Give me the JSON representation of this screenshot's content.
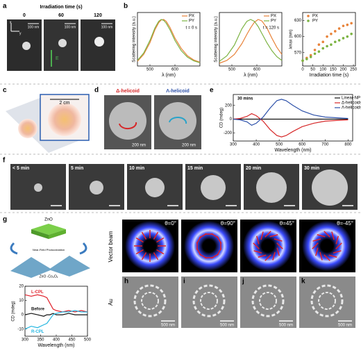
{
  "panels": {
    "a": {
      "label": "a",
      "title": "Irradiation time (s)",
      "times": [
        "0",
        "60",
        "120"
      ],
      "scale": "100 nm",
      "axes": [
        "x",
        "y"
      ],
      "field": "E"
    },
    "b": {
      "label": "b"
    },
    "c": {
      "label": "c",
      "scale": "2 cm"
    },
    "d": {
      "label": "d",
      "titles": [
        "Δ-helicoid",
        "Λ-helicoid"
      ],
      "scale": "200 nm"
    },
    "e": {
      "label": "e"
    },
    "f": {
      "label": "f",
      "times": [
        "< 5 min",
        "5 min",
        "10 min",
        "15 min",
        "20 min",
        "30 min"
      ]
    },
    "g": {
      "label": "g",
      "top": "ZnO",
      "process": "Near-Field Photooxidation",
      "bottom": "ZnO -Co₃Oₓ"
    },
    "vector": {
      "row_label": "Vector beam",
      "angles": [
        "θ=0°",
        "θ=90°",
        "θ=45°",
        "θ=-45°"
      ]
    },
    "au": {
      "row_label": "Au",
      "labels": [
        "h",
        "i",
        "j",
        "k"
      ],
      "scale": "500 nm"
    }
  },
  "chart_data": [
    {
      "type": "line",
      "xlabel": "λ (nm)",
      "ylabel": "Scattering intensity (a.u.)",
      "annotation": "t = 0 s",
      "legend": "upper-right",
      "x": [
        450,
        475,
        500,
        520,
        535,
        545,
        555,
        565,
        580,
        600,
        625,
        650,
        675,
        700
      ],
      "xlim": [
        450,
        700
      ],
      "xticks": [
        500,
        600
      ],
      "ylim": [
        0,
        1.15
      ],
      "series": [
        {
          "name": "PX",
          "color": "#e8833a",
          "values": [
            0.1,
            0.25,
            0.5,
            0.78,
            0.93,
            0.99,
            1.0,
            0.96,
            0.83,
            0.6,
            0.38,
            0.22,
            0.13,
            0.08
          ]
        },
        {
          "name": "PY",
          "color": "#7cb342",
          "values": [
            0.12,
            0.28,
            0.55,
            0.82,
            0.96,
            1.0,
            0.98,
            0.92,
            0.78,
            0.55,
            0.33,
            0.19,
            0.11,
            0.07
          ]
        }
      ]
    },
    {
      "type": "line",
      "xlabel": "λ (nm)",
      "ylabel": "Scattering intensity (a.u.)",
      "annotation": "t = 120 s",
      "legend": "upper-right",
      "x": [
        450,
        480,
        510,
        540,
        560,
        575,
        590,
        605,
        620,
        640,
        660,
        680,
        700
      ],
      "xlim": [
        450,
        700
      ],
      "xticks": [
        500,
        600
      ],
      "ylim": [
        0,
        1.15
      ],
      "series": [
        {
          "name": "PX",
          "color": "#e8833a",
          "values": [
            0.06,
            0.12,
            0.25,
            0.48,
            0.68,
            0.82,
            0.94,
            1.0,
            0.97,
            0.82,
            0.6,
            0.4,
            0.25
          ]
        },
        {
          "name": "PY",
          "color": "#7cb342",
          "values": [
            0.1,
            0.22,
            0.45,
            0.8,
            0.96,
            1.0,
            0.96,
            0.85,
            0.7,
            0.5,
            0.33,
            0.2,
            0.12
          ]
        }
      ]
    },
    {
      "type": "scatter",
      "xlabel": "Irradiation time (s)",
      "ylabel": "λmax (nm)",
      "legend": "upper-left",
      "x": [
        0,
        20,
        40,
        60,
        80,
        100,
        120,
        140,
        160,
        180,
        200,
        220,
        240
      ],
      "xlim": [
        0,
        260
      ],
      "xticks": [
        0,
        50,
        100,
        150,
        200,
        250
      ],
      "ylim": [
        545,
        645
      ],
      "yticks": [
        570,
        600,
        630
      ],
      "series": [
        {
          "name": "PX",
          "color": "#e8833a",
          "values": [
            555,
            560,
            565,
            575,
            585,
            590,
            600,
            605,
            610,
            615,
            620,
            622,
            625
          ]
        },
        {
          "name": "PY",
          "color": "#7cb342",
          "values": [
            555,
            558,
            562,
            568,
            572,
            578,
            582,
            585,
            590,
            593,
            597,
            600,
            605
          ]
        }
      ]
    },
    {
      "type": "line",
      "xlabel": "Wavelength (nm)",
      "ylabel": "CD (mdeg)",
      "annotation": "30 mins",
      "legend": "upper-right",
      "x": [
        300,
        330,
        360,
        380,
        400,
        430,
        460,
        490,
        510,
        530,
        560,
        600,
        650,
        700,
        750,
        800
      ],
      "xlim": [
        300,
        820
      ],
      "xticks": [
        300,
        400,
        500,
        600,
        700,
        800
      ],
      "ylim": [
        -320,
        360
      ],
      "yticks": [
        -200,
        0,
        200
      ],
      "series": [
        {
          "name": "Linear-NP",
          "color": "#111111",
          "values": [
            0,
            0,
            0,
            0,
            0,
            0,
            0,
            0,
            0,
            0,
            0,
            0,
            0,
            0,
            0,
            0
          ]
        },
        {
          "name": "Δ-helicoids",
          "color": "#d62728",
          "values": [
            0,
            10,
            40,
            80,
            50,
            -30,
            -150,
            -240,
            -260,
            -240,
            -180,
            -110,
            -60,
            -30,
            -20,
            -10
          ]
        },
        {
          "name": "Λ-helicoids",
          "color": "#2b4fa8",
          "values": [
            0,
            -10,
            -40,
            -90,
            -60,
            30,
            160,
            270,
            290,
            270,
            200,
            120,
            60,
            30,
            20,
            10
          ]
        }
      ]
    },
    {
      "type": "line",
      "xlabel": "Wavelength (nm)",
      "ylabel": "CD (mdeg)",
      "legend": "inline",
      "x": [
        300,
        320,
        340,
        360,
        370,
        380,
        390,
        400,
        420,
        440,
        460,
        480,
        500
      ],
      "xlim": [
        300,
        500
      ],
      "xticks": [
        300,
        350,
        400,
        450,
        500
      ],
      "ylim": [
        -15,
        20
      ],
      "yticks": [
        -10,
        0,
        10,
        20
      ],
      "series": [
        {
          "name": "L-CPL",
          "color": "#e0202a",
          "values": [
            14,
            13,
            14,
            13,
            12,
            8,
            4,
            3,
            2,
            3,
            2,
            3,
            2
          ]
        },
        {
          "name": "Before",
          "color": "#111111",
          "values": [
            0,
            1,
            0,
            -1,
            0,
            0,
            1,
            0,
            0,
            1,
            0,
            0,
            0
          ]
        },
        {
          "name": "R-CPL",
          "color": "#22b5e0",
          "values": [
            -10,
            -8,
            -9,
            -7,
            -6,
            -3,
            0,
            1,
            2,
            2,
            3,
            2,
            2
          ]
        }
      ]
    }
  ]
}
